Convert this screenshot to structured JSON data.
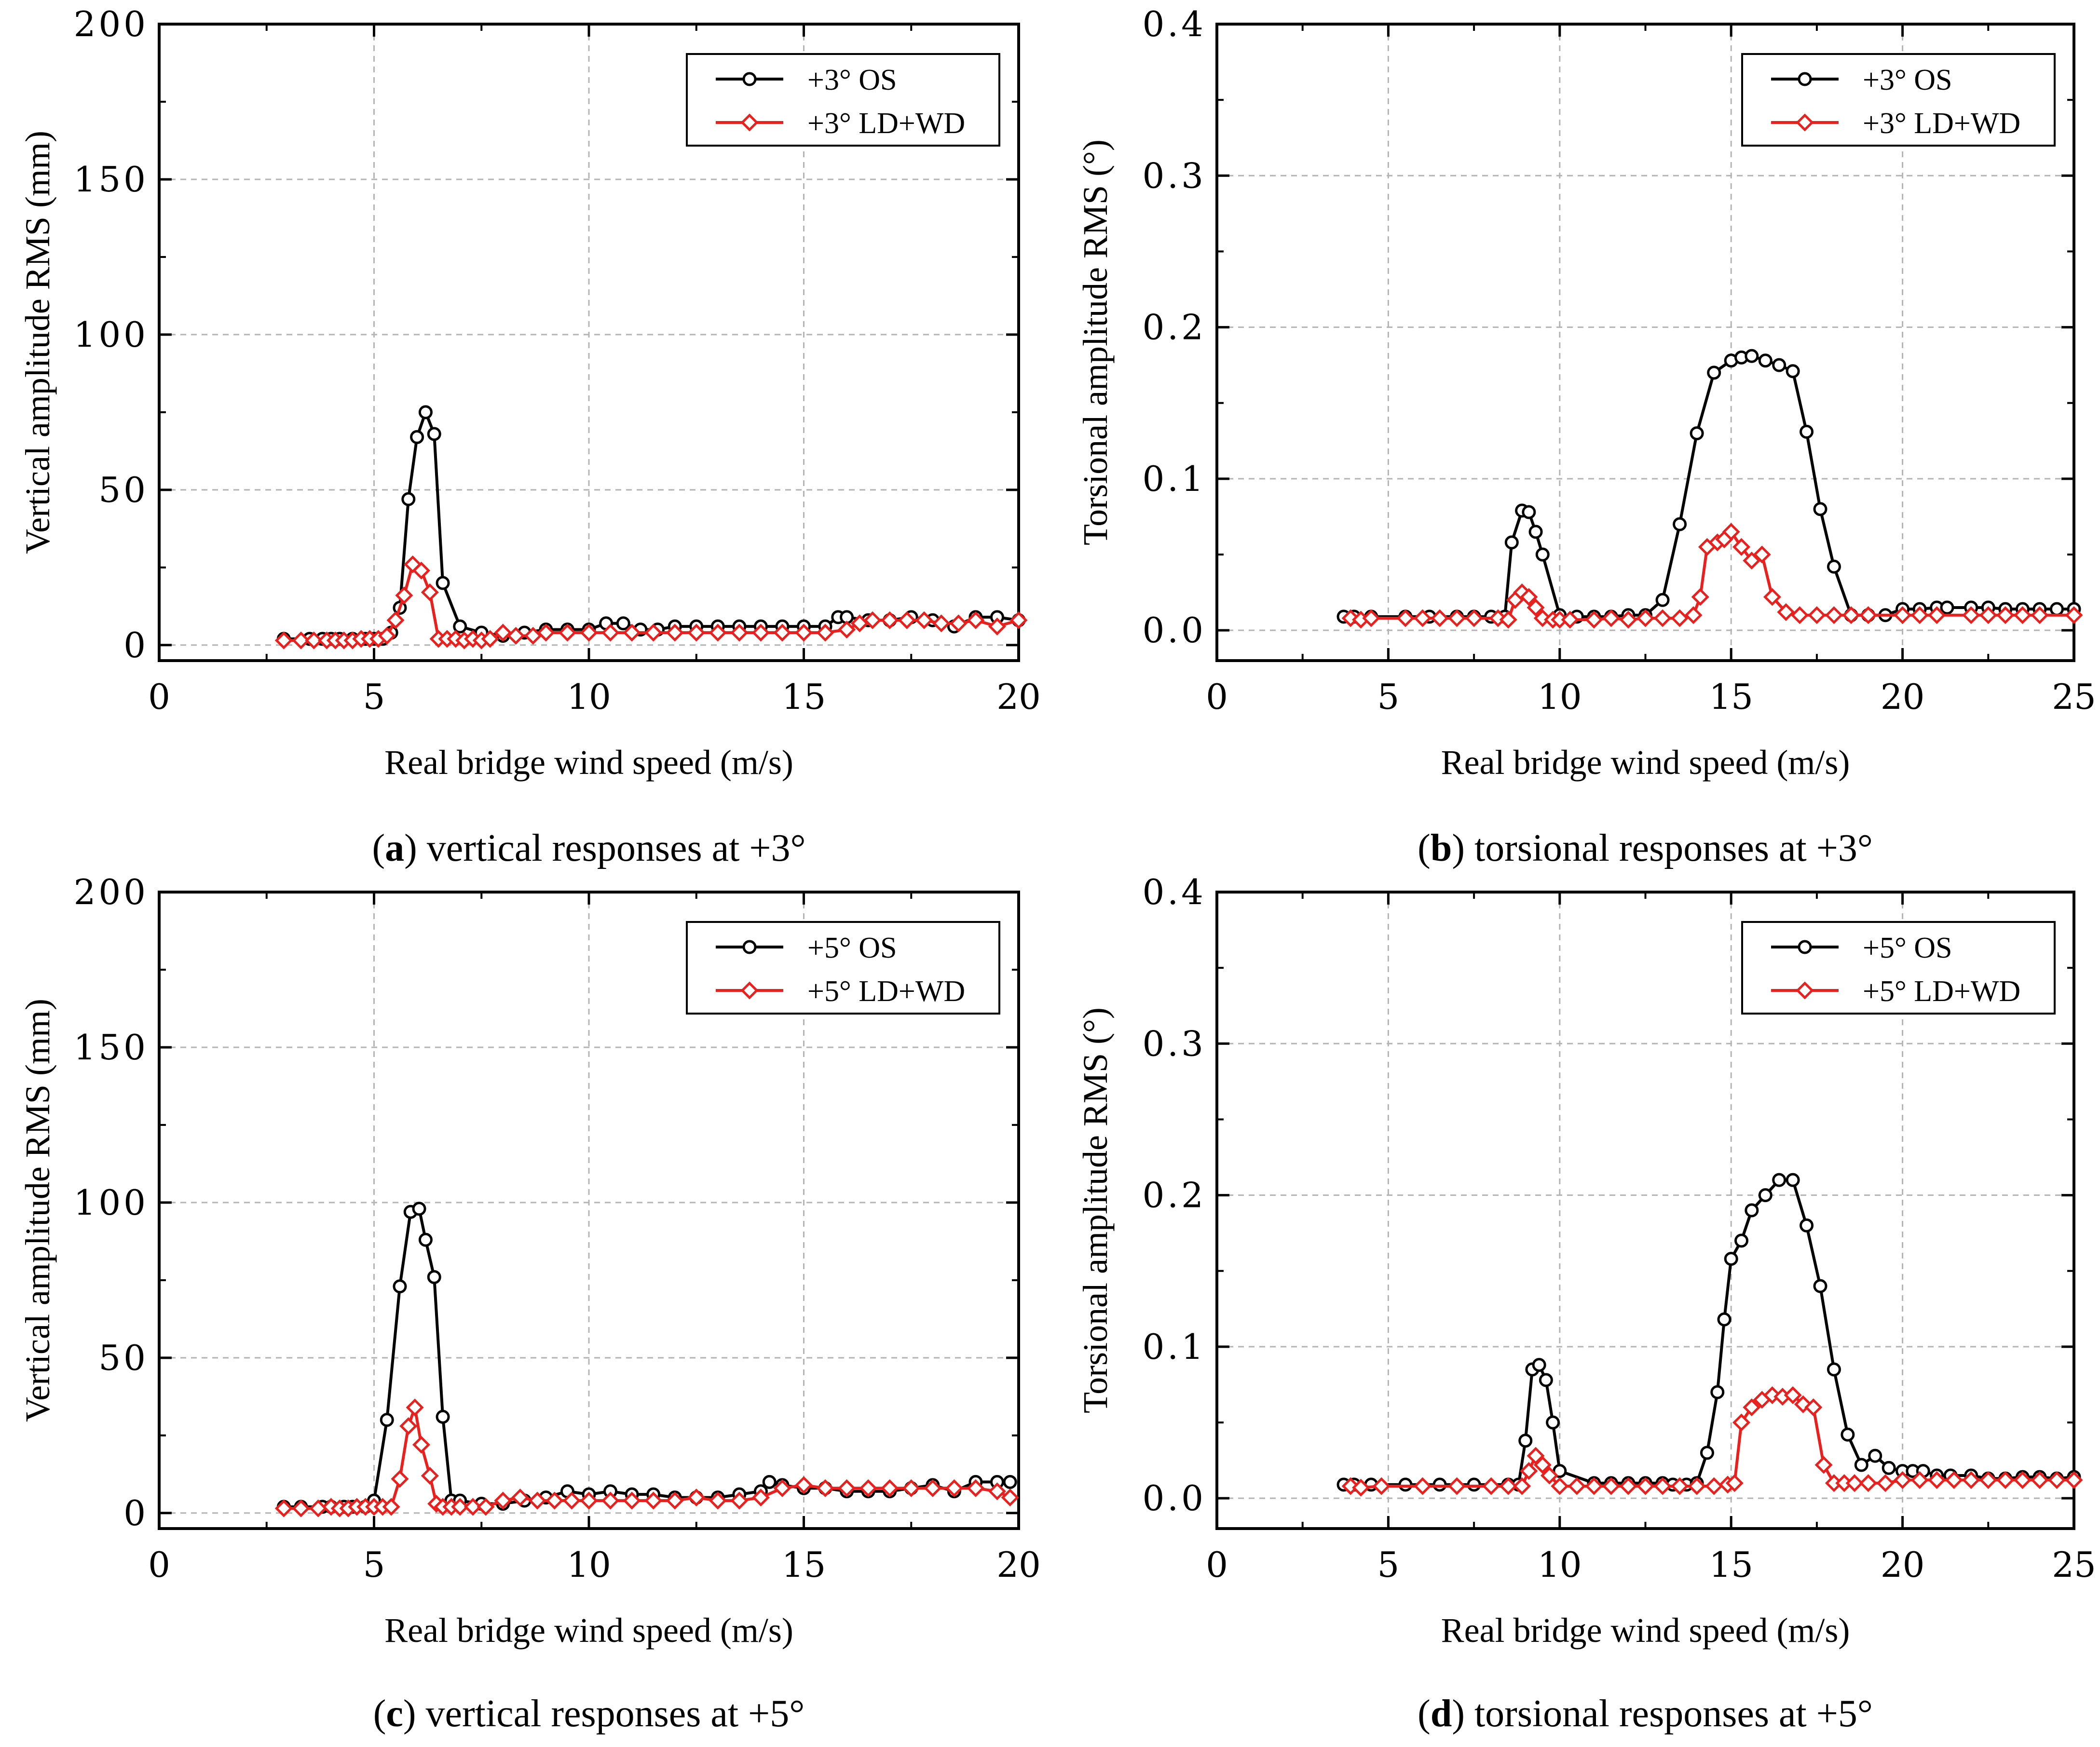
{
  "colors": {
    "os": "#000000",
    "ldwd": "#e8211e",
    "grid": "#b4b4b4"
  },
  "chart_data": [
    {
      "type": "line",
      "caption": {
        "letter": "a",
        "text": "vertical responses at +3°"
      },
      "xlabel": "Real bridge wind speed (m/s)",
      "ylabel": "Vertical amplitude RMS (mm)",
      "xlim": [
        0,
        20
      ],
      "ylim": [
        -5,
        200
      ],
      "xticks": [
        0,
        5,
        10,
        15,
        20
      ],
      "yticks": [
        0,
        50,
        100,
        150,
        200
      ],
      "yticklabels": [
        "0",
        "50",
        "100",
        "150",
        "200"
      ],
      "grid": true,
      "legend_position": "top-right",
      "series": [
        {
          "name": "+3° OS",
          "color": "#000000",
          "marker": "circle",
          "x": [
            2.9,
            3.5,
            3.8,
            4.0,
            4.2,
            4.5,
            4.8,
            5.0,
            5.2,
            5.4,
            5.6,
            5.8,
            6.0,
            6.2,
            6.4,
            6.6,
            7.0,
            7.5,
            8.0,
            8.5,
            9.0,
            9.5,
            10.0,
            10.4,
            10.8,
            11.2,
            11.6,
            12.0,
            12.5,
            13.0,
            13.5,
            14.0,
            14.5,
            15.0,
            15.5,
            15.8,
            16.0,
            16.5,
            17.0,
            17.5,
            18.0,
            18.5,
            19.0,
            19.5,
            20.0
          ],
          "values": [
            2,
            2,
            2,
            2,
            2,
            2,
            2,
            2,
            2,
            4,
            12,
            47,
            67,
            75,
            68,
            20,
            6,
            4,
            3,
            4,
            5,
            5,
            5,
            7,
            7,
            5,
            5,
            6,
            6,
            6,
            6,
            6,
            6,
            6,
            6,
            9,
            9,
            8,
            8,
            9,
            8,
            6,
            9,
            9,
            8
          ]
        },
        {
          "name": "+3° LD+WD",
          "color": "#e8211e",
          "marker": "diamond",
          "x": [
            2.9,
            3.3,
            3.6,
            3.9,
            4.1,
            4.3,
            4.5,
            4.7,
            4.9,
            5.1,
            5.3,
            5.5,
            5.7,
            5.9,
            6.1,
            6.3,
            6.5,
            6.7,
            6.9,
            7.1,
            7.3,
            7.5,
            7.7,
            8.0,
            8.3,
            8.7,
            9.0,
            9.5,
            10.0,
            10.5,
            11.0,
            11.5,
            12.0,
            12.5,
            13.0,
            13.5,
            14.0,
            14.5,
            15.0,
            15.5,
            16.0,
            16.3,
            16.6,
            17.0,
            17.4,
            17.8,
            18.2,
            18.6,
            19.0,
            19.5,
            20.0
          ],
          "values": [
            1.5,
            1.5,
            1.5,
            1.5,
            1.5,
            1.5,
            1.5,
            2,
            2,
            2,
            3,
            8,
            16,
            26,
            24,
            17,
            2,
            2,
            2,
            1.5,
            2,
            1.5,
            2,
            4,
            3,
            3,
            4,
            4,
            4,
            4,
            4,
            4,
            4,
            4,
            4,
            4,
            4,
            4,
            4,
            4,
            5,
            7,
            8,
            8,
            8,
            8,
            7,
            7,
            8,
            6,
            8
          ]
        }
      ]
    },
    {
      "type": "line",
      "caption": {
        "letter": "b",
        "text": "torsional responses at +3°"
      },
      "xlabel": "Real bridge wind speed (m/s)",
      "ylabel": "Torsional amplitude RMS (°)",
      "xlim": [
        0,
        25
      ],
      "ylim": [
        -0.02,
        0.4
      ],
      "xticks": [
        0,
        5,
        10,
        15,
        20,
        25
      ],
      "yticks": [
        0,
        0.1,
        0.2,
        0.3,
        0.4
      ],
      "yticklabels": [
        "0.0",
        "0.1",
        "0.2",
        "0.3",
        "0.4"
      ],
      "grid": true,
      "legend_position": "top-right",
      "series": [
        {
          "name": "+3° OS",
          "color": "#000000",
          "marker": "circle",
          "x": [
            3.7,
            4.0,
            4.5,
            5.5,
            6.2,
            7.0,
            7.5,
            8.0,
            8.4,
            8.6,
            8.9,
            9.1,
            9.3,
            9.5,
            10.0,
            10.5,
            11.0,
            11.5,
            12.0,
            12.5,
            13.0,
            13.5,
            14.0,
            14.5,
            15.0,
            15.3,
            15.6,
            16.0,
            16.4,
            16.8,
            17.2,
            17.6,
            18.0,
            18.5,
            19.0,
            19.5,
            20.0,
            20.5,
            21.0,
            21.3,
            22.0,
            22.5,
            23.0,
            23.5,
            24.0,
            24.5,
            25.0
          ],
          "values": [
            0.009,
            0.009,
            0.009,
            0.009,
            0.009,
            0.009,
            0.009,
            0.009,
            0.009,
            0.058,
            0.079,
            0.078,
            0.065,
            0.05,
            0.01,
            0.009,
            0.009,
            0.009,
            0.01,
            0.01,
            0.02,
            0.07,
            0.13,
            0.17,
            0.178,
            0.18,
            0.181,
            0.178,
            0.175,
            0.171,
            0.131,
            0.08,
            0.042,
            0.01,
            0.01,
            0.01,
            0.014,
            0.014,
            0.015,
            0.015,
            0.015,
            0.015,
            0.014,
            0.014,
            0.014,
            0.014,
            0.014
          ]
        },
        {
          "name": "+3° LD+WD",
          "color": "#e8211e",
          "marker": "diamond",
          "x": [
            3.9,
            4.2,
            4.5,
            5.5,
            6.0,
            6.5,
            7.0,
            7.5,
            8.2,
            8.5,
            8.7,
            8.9,
            9.1,
            9.3,
            9.5,
            9.8,
            10.0,
            10.3,
            11.0,
            11.5,
            12.0,
            12.5,
            13.0,
            13.5,
            13.9,
            14.1,
            14.3,
            14.6,
            14.8,
            15.0,
            15.3,
            15.6,
            15.9,
            16.2,
            16.6,
            17.0,
            17.5,
            18.0,
            18.5,
            19.0,
            20.0,
            20.5,
            21.0,
            22.0,
            22.5,
            23.0,
            23.5,
            24.0,
            25.0
          ],
          "values": [
            0.008,
            0.007,
            0.008,
            0.008,
            0.008,
            0.008,
            0.008,
            0.008,
            0.008,
            0.007,
            0.02,
            0.025,
            0.022,
            0.015,
            0.008,
            0.007,
            0.007,
            0.007,
            0.007,
            0.008,
            0.007,
            0.008,
            0.008,
            0.008,
            0.01,
            0.022,
            0.055,
            0.058,
            0.06,
            0.065,
            0.055,
            0.046,
            0.05,
            0.022,
            0.012,
            0.01,
            0.01,
            0.01,
            0.01,
            0.01,
            0.01,
            0.01,
            0.01,
            0.01,
            0.01,
            0.01,
            0.01,
            0.01,
            0.01
          ]
        }
      ]
    },
    {
      "type": "line",
      "caption": {
        "letter": "c",
        "text": "vertical responses at +5°"
      },
      "xlabel": "Real bridge wind speed (m/s)",
      "ylabel": "Vertical amplitude RMS (mm)",
      "xlim": [
        0,
        20
      ],
      "ylim": [
        -5,
        200
      ],
      "xticks": [
        0,
        5,
        10,
        15,
        20
      ],
      "yticks": [
        0,
        50,
        100,
        150,
        200
      ],
      "yticklabels": [
        "0",
        "50",
        "100",
        "150",
        "200"
      ],
      "grid": true,
      "legend_position": "top-right",
      "series": [
        {
          "name": "+5° OS",
          "color": "#000000",
          "marker": "circle",
          "x": [
            2.9,
            3.3,
            3.8,
            4.0,
            4.3,
            4.5,
            4.8,
            5.0,
            5.3,
            5.6,
            5.85,
            6.05,
            6.2,
            6.4,
            6.6,
            6.8,
            7.0,
            7.5,
            8.0,
            8.5,
            9.0,
            9.5,
            10.0,
            10.5,
            11.0,
            11.5,
            12.0,
            12.5,
            13.0,
            13.5,
            14.0,
            14.2,
            14.5,
            15.0,
            15.5,
            16.0,
            16.5,
            17.0,
            17.5,
            18.0,
            18.5,
            19.0,
            19.5,
            19.8
          ],
          "values": [
            2,
            2,
            2,
            2,
            2,
            2,
            2,
            4,
            30,
            73,
            97,
            98,
            88,
            76,
            31,
            4,
            4,
            3,
            3,
            4,
            5,
            7,
            6,
            7,
            6,
            6,
            5,
            5,
            5,
            6,
            7,
            10,
            9,
            8,
            8,
            7,
            7,
            7,
            8,
            9,
            7,
            10,
            10,
            10
          ]
        },
        {
          "name": "+5° LD+WD",
          "color": "#e8211e",
          "marker": "diamond",
          "x": [
            2.9,
            3.3,
            3.7,
            4.0,
            4.2,
            4.4,
            4.6,
            4.8,
            5.0,
            5.2,
            5.4,
            5.6,
            5.8,
            5.95,
            6.1,
            6.3,
            6.45,
            6.6,
            6.8,
            7.0,
            7.3,
            7.6,
            8.0,
            8.4,
            8.8,
            9.2,
            9.6,
            10.0,
            10.5,
            11.0,
            11.5,
            12.0,
            12.5,
            13.0,
            13.5,
            14.0,
            14.5,
            15.0,
            15.5,
            16.0,
            16.5,
            17.0,
            17.5,
            18.0,
            18.5,
            19.0,
            19.5,
            19.8
          ],
          "values": [
            1.5,
            1.5,
            1.5,
            2,
            1.5,
            1.5,
            2,
            2,
            2,
            2,
            2,
            11,
            28,
            34,
            22,
            12,
            3,
            2,
            2,
            2,
            2,
            2,
            4,
            5,
            4,
            4,
            4,
            4,
            4,
            4,
            4,
            4,
            5,
            4,
            4,
            5,
            8,
            9,
            8,
            8,
            8,
            8,
            8,
            8,
            8,
            8,
            7,
            5
          ]
        }
      ]
    },
    {
      "type": "line",
      "caption": {
        "letter": "d",
        "text": "torsional responses at +5°"
      },
      "xlabel": "Real bridge wind speed (m/s)",
      "ylabel": "Torsional amplitude RMS (°)",
      "xlim": [
        0,
        25
      ],
      "ylim": [
        -0.02,
        0.4
      ],
      "xticks": [
        0,
        5,
        10,
        15,
        20,
        25
      ],
      "yticks": [
        0,
        0.1,
        0.2,
        0.3,
        0.4
      ],
      "yticklabels": [
        "0.0",
        "0.1",
        "0.2",
        "0.3",
        "0.4"
      ],
      "grid": true,
      "legend_position": "top-right",
      "series": [
        {
          "name": "+5° OS",
          "color": "#000000",
          "marker": "circle",
          "x": [
            3.7,
            4.0,
            4.5,
            5.5,
            6.5,
            7.5,
            8.5,
            8.8,
            9.0,
            9.2,
            9.4,
            9.6,
            9.8,
            10.0,
            11.0,
            11.5,
            12.0,
            12.5,
            13.0,
            13.3,
            13.7,
            14.0,
            14.3,
            14.6,
            14.8,
            15.0,
            15.3,
            15.6,
            16.0,
            16.4,
            16.8,
            17.2,
            17.6,
            18.0,
            18.4,
            18.8,
            19.2,
            19.6,
            20.0,
            20.3,
            20.6,
            21.0,
            21.4,
            22.0,
            22.5,
            23.0,
            23.5,
            24.0,
            24.5,
            25.0
          ],
          "values": [
            0.009,
            0.009,
            0.009,
            0.009,
            0.009,
            0.009,
            0.009,
            0.009,
            0.038,
            0.085,
            0.088,
            0.078,
            0.05,
            0.018,
            0.01,
            0.01,
            0.01,
            0.01,
            0.01,
            0.009,
            0.009,
            0.01,
            0.03,
            0.07,
            0.118,
            0.158,
            0.17,
            0.19,
            0.2,
            0.21,
            0.21,
            0.18,
            0.14,
            0.085,
            0.042,
            0.022,
            0.028,
            0.02,
            0.018,
            0.018,
            0.018,
            0.015,
            0.015,
            0.015,
            0.013,
            0.013,
            0.014,
            0.014,
            0.013,
            0.014
          ]
        },
        {
          "name": "+5° LD+WD",
          "color": "#e8211e",
          "marker": "diamond",
          "x": [
            3.9,
            4.2,
            4.8,
            6.0,
            7.0,
            8.0,
            8.5,
            8.9,
            9.1,
            9.3,
            9.5,
            9.7,
            10.0,
            10.5,
            11.0,
            11.5,
            12.0,
            12.5,
            13.0,
            13.5,
            14.0,
            14.5,
            14.9,
            15.1,
            15.3,
            15.6,
            15.9,
            16.2,
            16.5,
            16.8,
            17.1,
            17.4,
            17.7,
            18.0,
            18.3,
            18.6,
            19.0,
            19.5,
            20.0,
            20.5,
            21.0,
            21.5,
            22.0,
            22.5,
            23.0,
            23.5,
            24.0,
            24.5,
            25.0
          ],
          "values": [
            0.008,
            0.007,
            0.008,
            0.008,
            0.008,
            0.008,
            0.008,
            0.008,
            0.018,
            0.028,
            0.022,
            0.015,
            0.008,
            0.008,
            0.008,
            0.008,
            0.008,
            0.008,
            0.008,
            0.008,
            0.008,
            0.008,
            0.009,
            0.01,
            0.05,
            0.06,
            0.065,
            0.068,
            0.067,
            0.068,
            0.062,
            0.06,
            0.022,
            0.01,
            0.01,
            0.01,
            0.01,
            0.01,
            0.012,
            0.012,
            0.012,
            0.012,
            0.012,
            0.012,
            0.012,
            0.012,
            0.012,
            0.012,
            0.012
          ]
        }
      ]
    }
  ]
}
